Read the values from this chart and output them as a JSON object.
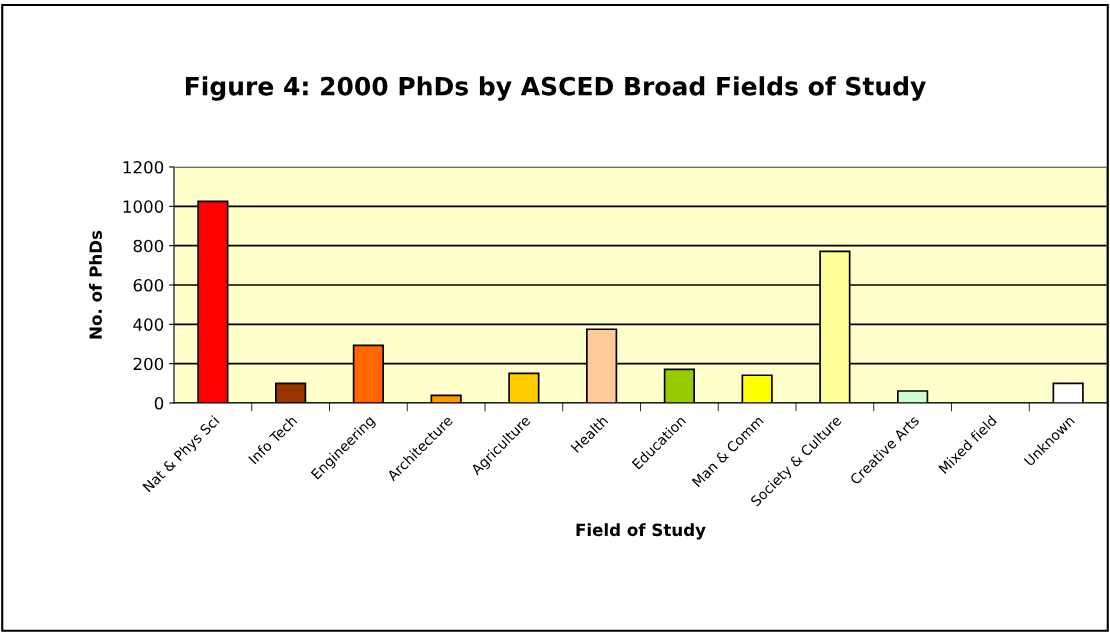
{
  "chart_data": {
    "type": "bar",
    "title": "Figure 4: 2000 PhDs by ASCED Broad Fields of Study",
    "xlabel": "Field of Study",
    "ylabel": "No. of PhDs",
    "categories": [
      "Nat & Phys Sci",
      "Info Tech",
      "Engineering",
      "Architecture",
      "Agriculture",
      "Health",
      "Education",
      "Man & Comm",
      "Society & Culture",
      "Creative Arts",
      "Mixed field",
      "Unknown"
    ],
    "values": [
      1025,
      100,
      293,
      39,
      151,
      375,
      171,
      141,
      771,
      61,
      0,
      100
    ],
    "colors": [
      "#ff0000",
      "#993300",
      "#ff6600",
      "#ff9900",
      "#ffcc00",
      "#ffcc99",
      "#99cc00",
      "#ffff00",
      "#ffff99",
      "#ccffcc",
      "#ffffff",
      "#ffffff"
    ],
    "ylim": [
      0,
      1200
    ],
    "yticks": [
      0,
      200,
      400,
      600,
      800,
      1000,
      1200
    ],
    "grid": "y"
  }
}
